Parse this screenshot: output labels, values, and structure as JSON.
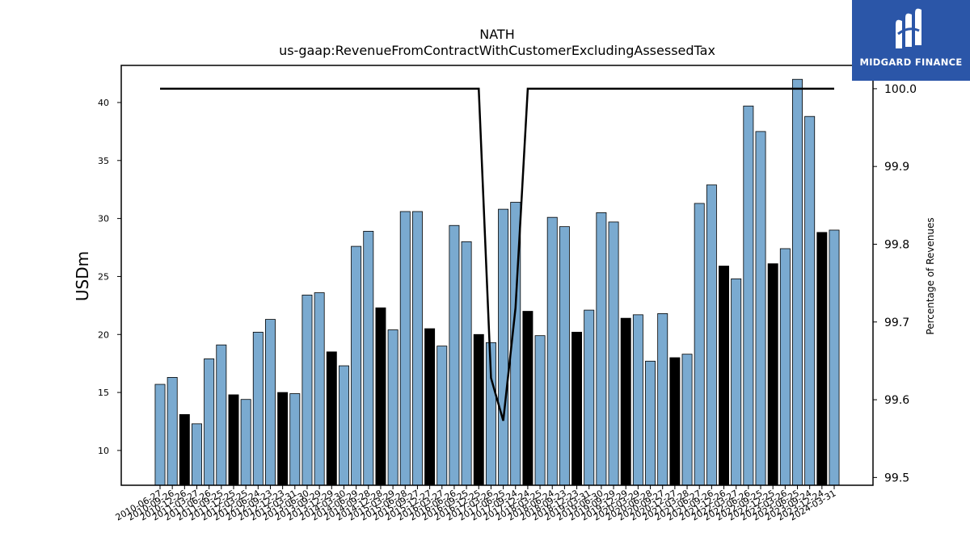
{
  "logo": {
    "text": "MIDGARD FINANCE"
  },
  "chart_data": {
    "type": "bar",
    "title": "NATH",
    "subtitle": "us-gaap:RevenueFromContractWithCustomerExcludingAssessedTax",
    "ylabel": "USDm",
    "y2label": "Percentage of Revenues",
    "ylim": [
      7,
      43.2
    ],
    "y2lim": [
      99.49,
      100.03
    ],
    "yticks": [
      10,
      15,
      20,
      25,
      30,
      35,
      40
    ],
    "y2ticks": [
      "99.5",
      "99.6",
      "99.7",
      "99.8",
      "99.9",
      "100.0"
    ],
    "bar_colors": {
      "quarter": "#7aaad0",
      "annual": "#000000"
    },
    "line_color": "#000000",
    "categories": [
      "2010-06-27",
      "2010-09-26",
      "2010-12-26",
      "2011-03-27",
      "2011-06-26",
      "2011-09-25",
      "2011-12-25",
      "2012-03-25",
      "2012-06-24",
      "2012-09-23",
      "2012-12-23",
      "2013-03-31",
      "2013-06-30",
      "2013-09-29",
      "2013-12-29",
      "2014-03-30",
      "2014-06-29",
      "2014-09-28",
      "2014-12-28",
      "2015-03-29",
      "2015-06-28",
      "2015-09-27",
      "2015-12-27",
      "2016-03-27",
      "2016-06-26",
      "2016-09-25",
      "2016-12-25",
      "2017-03-26",
      "2017-06-25",
      "2017-09-24",
      "2017-12-24",
      "2018-03-25",
      "2018-06-24",
      "2018-09-23",
      "2018-12-23",
      "2019-03-31",
      "2019-06-30",
      "2019-09-29",
      "2019-12-29",
      "2020-03-29",
      "2020-06-28",
      "2020-09-27",
      "2020-12-27",
      "2021-03-28",
      "2021-06-27",
      "2021-09-26",
      "2021-12-26",
      "2022-03-27",
      "2022-06-26",
      "2022-09-25",
      "2022-12-25",
      "2023-03-26",
      "2023-06-25",
      "2023-09-24",
      "2023-12-24",
      "2024-03-31"
    ],
    "values": [
      15.7,
      16.3,
      13.1,
      12.3,
      17.9,
      19.1,
      14.8,
      14.4,
      20.2,
      21.3,
      15.0,
      14.9,
      23.4,
      23.6,
      18.5,
      17.3,
      27.6,
      28.9,
      22.3,
      20.4,
      30.6,
      30.6,
      20.5,
      19.0,
      29.4,
      28.0,
      20.0,
      19.3,
      30.8,
      31.4,
      22.0,
      19.9,
      30.1,
      29.3,
      20.2,
      22.1,
      30.5,
      29.7,
      21.4,
      21.7,
      17.7,
      21.8,
      18.0,
      18.3,
      31.3,
      32.9,
      25.9,
      24.8,
      39.7,
      37.5,
      26.1,
      27.4,
      42.0,
      38.8,
      28.8,
      29.0
    ],
    "annual_flags": [
      0,
      0,
      1,
      0,
      0,
      0,
      1,
      0,
      0,
      0,
      1,
      0,
      0,
      0,
      1,
      0,
      0,
      0,
      1,
      0,
      0,
      0,
      1,
      0,
      0,
      0,
      1,
      0,
      0,
      0,
      1,
      0,
      0,
      0,
      1,
      0,
      0,
      0,
      1,
      0,
      0,
      0,
      1,
      0,
      0,
      0,
      1,
      0,
      0,
      0,
      1,
      0,
      0,
      0,
      1,
      0
    ],
    "series": [
      {
        "values": [
          100.0,
          100.0,
          100.0,
          100.0,
          100.0,
          100.0,
          100.0,
          100.0,
          100.0,
          100.0,
          100.0,
          100.0,
          100.0,
          100.0,
          100.0,
          100.0,
          100.0,
          100.0,
          100.0,
          100.0,
          100.0,
          100.0,
          100.0,
          100.0,
          100.0,
          100.0,
          100.0,
          99.628,
          99.573,
          99.718,
          100.0,
          100.0,
          100.0,
          100.0,
          100.0,
          100.0,
          100.0,
          100.0,
          100.0,
          100.0,
          100.0,
          100.0,
          100.0,
          100.0,
          100.0,
          100.0,
          100.0,
          100.0,
          100.0,
          100.0,
          100.0,
          100.0,
          100.0,
          100.0,
          100.0,
          100.0
        ]
      }
    ],
    "grid": false,
    "legend": false
  }
}
